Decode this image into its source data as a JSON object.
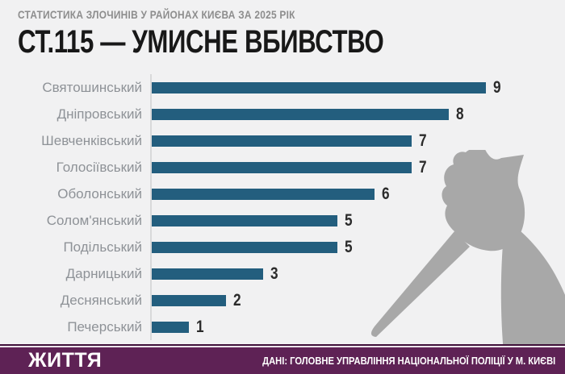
{
  "page": {
    "background": "#f1f1f2"
  },
  "header": {
    "subtitle": "СТАТИСТИКА ЗЛОЧИНІВ У РАЙОНАХ КИЄВА ЗА 2025 РІК",
    "title": "СТ.115 — УМИСНЕ ВБИВСТВО"
  },
  "chart_data": {
    "type": "bar",
    "orientation": "horizontal",
    "title": "СТ.115 — УМИСНЕ ВБИВСТВО",
    "categories": [
      "Святошинський",
      "Дніпровський",
      "Шевченківський",
      "Голосіївський",
      "Оболонський",
      "Солом'янський",
      "Подільський",
      "Дарницький",
      "Деснянський",
      "Печерський"
    ],
    "values": [
      9,
      8,
      7,
      7,
      6,
      5,
      5,
      3,
      2,
      1
    ],
    "xlim": [
      0,
      9
    ],
    "grid": false,
    "legend": false,
    "value_labels": true,
    "bar_color": "#235e7e",
    "axis_line_color": "#d8d9da"
  },
  "illustration": {
    "name": "hand-holding-knife-silhouette",
    "color": "#a8a8a8"
  },
  "footer": {
    "logo": "ЖИТТЯ",
    "source": "ДАНІ: ГОЛОВНЕ УПРАВЛІННЯ НАЦІОНАЛЬНОЇ ПОЛІЦІЇ У М. КИЄВІ",
    "background": "#5e2255",
    "accent_line": "#40113a"
  }
}
